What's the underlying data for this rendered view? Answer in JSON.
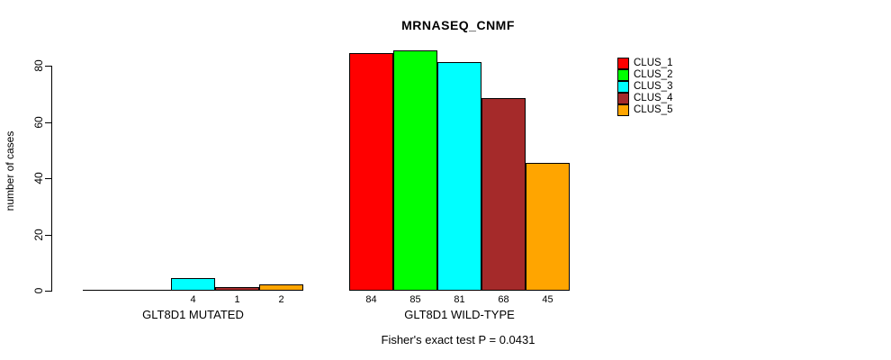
{
  "chart_data": {
    "type": "bar",
    "title": "MRNASEQ_CNMF",
    "ylabel": "number of cases",
    "xlabel": "",
    "ylim": [
      0,
      85
    ],
    "y_ticks": [
      0,
      20,
      40,
      60,
      80
    ],
    "grid": false,
    "legend_position": "right",
    "annotation": "Fisher's exact test P = 0.0431",
    "series": [
      {
        "name": "CLUS_1",
        "color": "#FF0000",
        "values": [
          0,
          84
        ]
      },
      {
        "name": "CLUS_2",
        "color": "#00FF00",
        "values": [
          0,
          85
        ]
      },
      {
        "name": "CLUS_3",
        "color": "#00FFFF",
        "values": [
          4,
          81
        ]
      },
      {
        "name": "CLUS_4",
        "color": "#A52A2A",
        "values": [
          1,
          68
        ]
      },
      {
        "name": "CLUS_5",
        "color": "#FFA500",
        "values": [
          2,
          45
        ]
      }
    ],
    "groups": [
      {
        "label": "GLT8D1 MUTATED",
        "values": [
          0,
          0,
          4,
          1,
          2
        ],
        "bar_labels": [
          "",
          "",
          "4",
          "1",
          "2"
        ]
      },
      {
        "label": "GLT8D1 WILD-TYPE",
        "values": [
          84,
          85,
          81,
          68,
          45
        ],
        "bar_labels": [
          "84",
          "85",
          "81",
          "68",
          "45"
        ]
      }
    ],
    "legend_entries": [
      {
        "label": "CLUS_1",
        "color": "#FF0000"
      },
      {
        "label": "CLUS_2",
        "color": "#00FF00"
      },
      {
        "label": "CLUS_3",
        "color": "#00FFFF"
      },
      {
        "label": "CLUS_4",
        "color": "#A52A2A"
      },
      {
        "label": "CLUS_5",
        "color": "#FFA500"
      }
    ],
    "colors": {
      "background": "#FFFFFF",
      "axis": "#000000",
      "bar_border": "#000000",
      "text": "#000000"
    }
  }
}
